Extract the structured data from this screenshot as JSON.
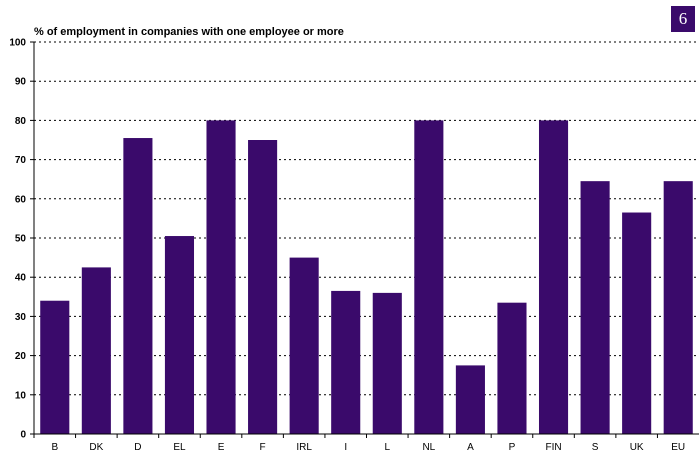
{
  "page": {
    "badge": "6"
  },
  "colors": {
    "bar": "#3a0a6b",
    "badge": "#3a0a6b",
    "grid": "#000000",
    "axis": "#000000"
  },
  "chart_data": {
    "type": "bar",
    "title": "% of employment in companies with one employee or more",
    "xlabel": "",
    "ylabel": "",
    "categories": [
      "B",
      "DK",
      "D",
      "EL",
      "E",
      "F",
      "IRL",
      "I",
      "L",
      "NL",
      "A",
      "P",
      "FIN",
      "S",
      "UK",
      "EU"
    ],
    "values": [
      34,
      42.5,
      75.5,
      50.5,
      80,
      75,
      45,
      36.5,
      36,
      80,
      17.5,
      33.5,
      80,
      64.5,
      56.5,
      64.5
    ],
    "yticks": [
      0,
      10,
      20,
      30,
      40,
      50,
      60,
      70,
      80,
      90,
      100
    ],
    "ylim": [
      0,
      100
    ],
    "grid": "dotted horizontal",
    "legend": "none"
  }
}
